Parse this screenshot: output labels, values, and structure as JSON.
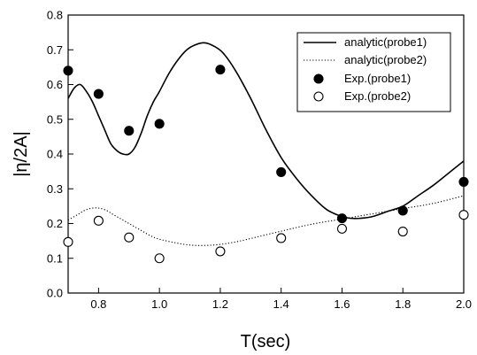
{
  "chart_data": {
    "type": "line",
    "xlabel": "T(sec)",
    "ylabel": "|η/2A|",
    "xlim": [
      0.7,
      2.0
    ],
    "ylim": [
      0.0,
      0.8
    ],
    "x_ticks": [
      "0.8",
      "1.0",
      "1.2",
      "1.4",
      "1.6",
      "1.8",
      "2.0"
    ],
    "y_ticks": [
      "0.0",
      "0.1",
      "0.2",
      "0.3",
      "0.4",
      "0.5",
      "0.6",
      "0.7",
      "0.8"
    ],
    "legend_position": "top-right",
    "grid": false,
    "series": [
      {
        "name": "analytic(probe1)",
        "style": "line",
        "x": [
          0.7,
          0.72,
          0.74,
          0.76,
          0.78,
          0.8,
          0.82,
          0.84,
          0.86,
          0.88,
          0.9,
          0.92,
          0.94,
          0.96,
          0.98,
          1.0,
          1.03,
          1.06,
          1.09,
          1.12,
          1.15,
          1.18,
          1.21,
          1.25,
          1.3,
          1.35,
          1.4,
          1.45,
          1.5,
          1.55,
          1.6,
          1.63,
          1.66,
          1.7,
          1.75,
          1.8,
          1.85,
          1.9,
          1.95,
          2.0
        ],
        "y": [
          0.56,
          0.59,
          0.6,
          0.58,
          0.55,
          0.51,
          0.47,
          0.43,
          0.41,
          0.4,
          0.4,
          0.42,
          0.46,
          0.51,
          0.55,
          0.58,
          0.63,
          0.67,
          0.7,
          0.715,
          0.72,
          0.71,
          0.69,
          0.64,
          0.56,
          0.47,
          0.39,
          0.33,
          0.28,
          0.24,
          0.22,
          0.215,
          0.215,
          0.22,
          0.235,
          0.25,
          0.28,
          0.31,
          0.345,
          0.38
        ]
      },
      {
        "name": "analytic(probe2)",
        "style": "dotted",
        "x": [
          0.7,
          0.73,
          0.76,
          0.79,
          0.82,
          0.85,
          0.88,
          0.91,
          0.94,
          0.97,
          1.0,
          1.05,
          1.1,
          1.15,
          1.2,
          1.25,
          1.3,
          1.4,
          1.5,
          1.6,
          1.7,
          1.8,
          1.9,
          2.0
        ],
        "y": [
          0.21,
          0.225,
          0.24,
          0.245,
          0.24,
          0.225,
          0.21,
          0.195,
          0.18,
          0.165,
          0.155,
          0.145,
          0.138,
          0.137,
          0.14,
          0.147,
          0.157,
          0.178,
          0.198,
          0.213,
          0.228,
          0.243,
          0.258,
          0.28
        ]
      },
      {
        "name": "Exp.(probe1)",
        "style": "filled-marker",
        "x": [
          0.7,
          0.8,
          0.9,
          1.0,
          1.2,
          1.4,
          1.6,
          1.8,
          2.0
        ],
        "y": [
          0.64,
          0.573,
          0.467,
          0.487,
          0.643,
          0.348,
          0.215,
          0.237,
          0.32
        ]
      },
      {
        "name": "Exp.(probe2)",
        "style": "open-marker",
        "x": [
          0.7,
          0.8,
          0.9,
          1.0,
          1.2,
          1.4,
          1.6,
          1.8,
          2.0
        ],
        "y": [
          0.147,
          0.208,
          0.16,
          0.1,
          0.12,
          0.158,
          0.185,
          0.177,
          0.225
        ]
      }
    ]
  }
}
